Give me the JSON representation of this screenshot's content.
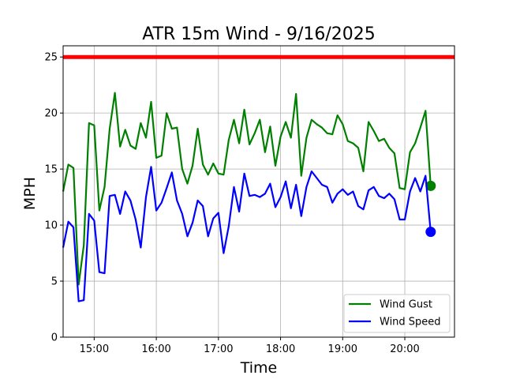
{
  "chart_data": {
    "type": "line",
    "title": "ATR 15m Wind - 9/16/2025",
    "xlabel": "Time",
    "ylabel": "MPH",
    "x_range_hours": [
      14.5,
      20.8
    ],
    "ylim": [
      0,
      26
    ],
    "y_ticks": [
      0,
      5,
      10,
      15,
      20,
      25
    ],
    "x_ticks": [
      {
        "hour": 15,
        "label": "15:00"
      },
      {
        "hour": 16,
        "label": "16:00"
      },
      {
        "hour": 17,
        "label": "17:00"
      },
      {
        "hour": 18,
        "label": "18:00"
      },
      {
        "hour": 19,
        "label": "19:00"
      },
      {
        "hour": 20,
        "label": "20:00"
      }
    ],
    "grid": true,
    "legend_position": "lower-right",
    "threshold": {
      "value": 25,
      "color": "#ff0000"
    },
    "times": [
      "14:30",
      "14:35",
      "14:40",
      "14:45",
      "14:50",
      "14:55",
      "15:00",
      "15:05",
      "15:10",
      "15:15",
      "15:20",
      "15:25",
      "15:30",
      "15:35",
      "15:40",
      "15:45",
      "15:50",
      "15:55",
      "16:00",
      "16:05",
      "16:10",
      "16:15",
      "16:20",
      "16:25",
      "16:30",
      "16:35",
      "16:40",
      "16:45",
      "16:50",
      "16:55",
      "17:00",
      "17:05",
      "17:10",
      "17:15",
      "17:20",
      "17:25",
      "17:30",
      "17:35",
      "17:40",
      "17:45",
      "17:50",
      "17:55",
      "18:00",
      "18:05",
      "18:10",
      "18:15",
      "18:20",
      "18:25",
      "18:30",
      "18:35",
      "18:40",
      "18:45",
      "18:50",
      "18:55",
      "19:00",
      "19:05",
      "19:10",
      "19:15",
      "19:20",
      "19:25",
      "19:30",
      "19:35",
      "19:40",
      "19:45",
      "19:50",
      "19:55",
      "20:00",
      "20:05",
      "20:10",
      "20:15",
      "20:20",
      "20:25"
    ],
    "series": [
      {
        "name": "Wind Gust",
        "color": "#008000",
        "values": [
          13.0,
          15.4,
          15.1,
          4.7,
          8.2,
          19.1,
          18.9,
          11.3,
          13.4,
          18.6,
          21.8,
          17.0,
          18.5,
          17.1,
          16.8,
          19.1,
          17.8,
          21.0,
          16.0,
          16.2,
          20.0,
          18.6,
          18.7,
          15.0,
          13.7,
          15.3,
          18.6,
          15.4,
          14.5,
          15.5,
          14.6,
          14.5,
          17.6,
          19.4,
          17.3,
          20.3,
          17.2,
          18.2,
          19.4,
          16.5,
          18.8,
          15.3,
          17.9,
          19.2,
          17.8,
          21.7,
          14.4,
          17.8,
          19.4,
          19.0,
          18.7,
          18.2,
          18.1,
          19.8,
          19.0,
          17.5,
          17.3,
          16.9,
          14.8,
          19.2,
          18.4,
          17.5,
          17.7,
          16.9,
          16.4,
          13.3,
          13.2,
          16.5,
          17.3,
          18.7,
          20.2,
          13.5
        ],
        "last_point": 13.5
      },
      {
        "name": "Wind Speed",
        "color": "#0000ff",
        "values": [
          8.0,
          10.3,
          9.8,
          3.2,
          3.3,
          11.0,
          10.4,
          5.8,
          5.7,
          12.6,
          12.7,
          11.0,
          13.0,
          12.2,
          10.5,
          8.0,
          12.5,
          15.2,
          11.3,
          12.0,
          13.3,
          14.7,
          12.2,
          11.0,
          9.0,
          10.2,
          12.2,
          11.7,
          9.0,
          10.6,
          11.1,
          7.5,
          9.9,
          13.4,
          11.2,
          14.6,
          12.6,
          12.7,
          12.5,
          12.8,
          13.7,
          11.6,
          12.5,
          13.9,
          11.5,
          13.6,
          10.8,
          13.4,
          14.8,
          14.2,
          13.6,
          13.4,
          12.0,
          12.8,
          13.2,
          12.7,
          13.0,
          11.7,
          11.4,
          13.1,
          13.4,
          12.6,
          12.4,
          12.8,
          12.3,
          10.5,
          10.5,
          13.0,
          14.2,
          13.0,
          14.4,
          9.4
        ],
        "last_point": 9.4
      }
    ]
  }
}
